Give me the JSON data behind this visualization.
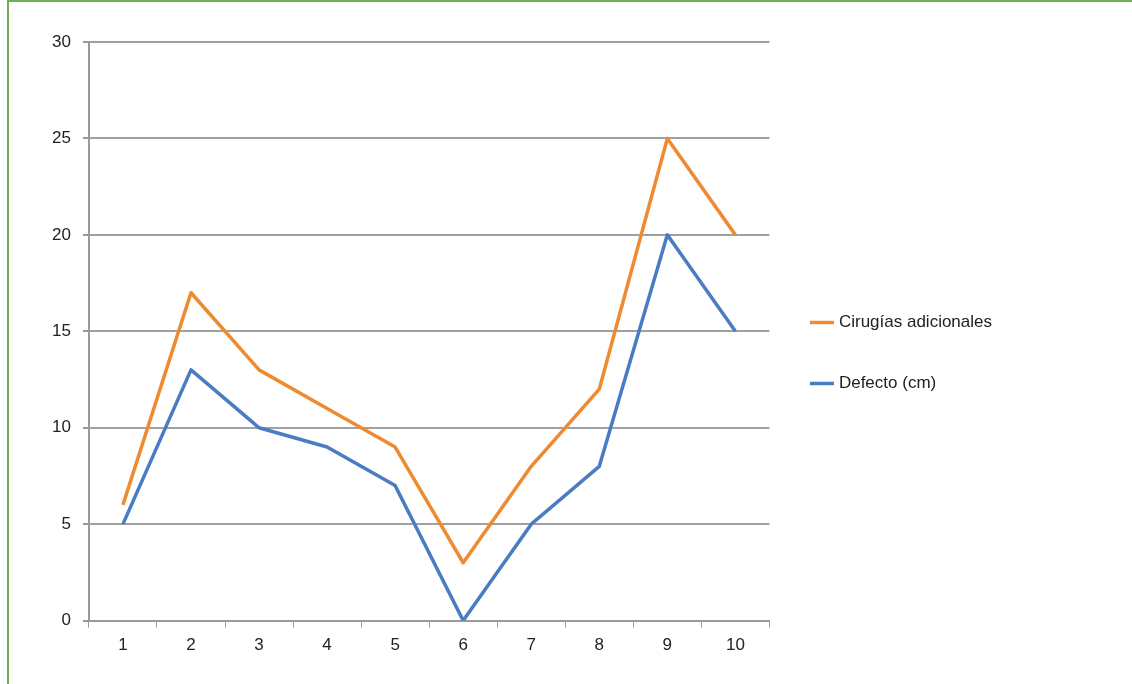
{
  "chart_data": {
    "type": "line",
    "categories": [
      "1",
      "2",
      "3",
      "4",
      "5",
      "6",
      "7",
      "8",
      "9",
      "10"
    ],
    "series": [
      {
        "name": "Cirugías adicionales",
        "color": "#ee8a2f",
        "values": [
          6,
          17,
          13,
          11,
          9,
          3,
          8,
          12,
          25,
          20
        ]
      },
      {
        "name": "Defecto (cm)",
        "color": "#4a7cc4",
        "values": [
          5,
          13,
          10,
          9,
          7,
          0,
          5,
          8,
          20,
          15
        ]
      }
    ],
    "ylim": [
      0,
      30
    ],
    "yticks": [
      0,
      5,
      10,
      15,
      20,
      25,
      30
    ],
    "grid": "y",
    "legend": "right",
    "marker": "none",
    "line_style": "solid"
  }
}
